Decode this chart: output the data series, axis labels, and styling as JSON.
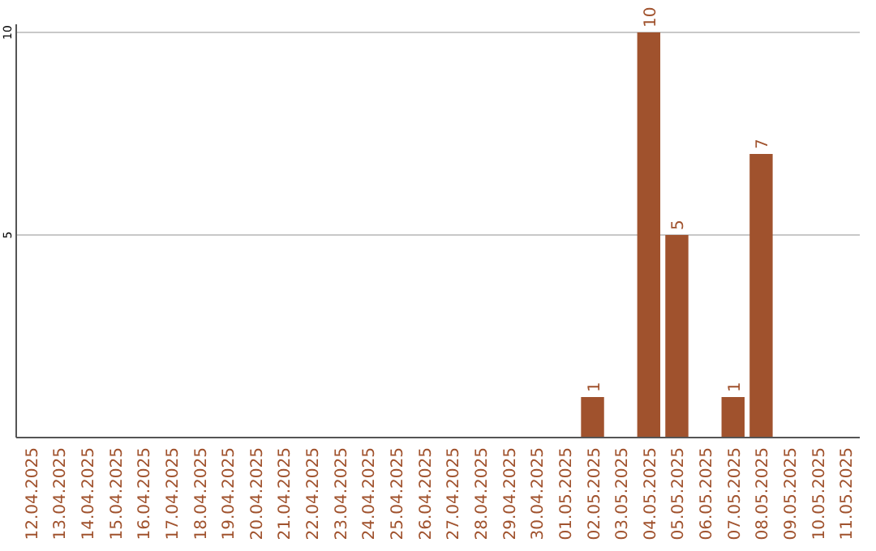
{
  "chart_data": {
    "type": "bar",
    "categories": [
      "12.04.2025",
      "13.04.2025",
      "14.04.2025",
      "15.04.2025",
      "16.04.2025",
      "17.04.2025",
      "18.04.2025",
      "19.04.2025",
      "20.04.2025",
      "21.04.2025",
      "22.04.2025",
      "23.04.2025",
      "24.04.2025",
      "25.04.2025",
      "26.04.2025",
      "27.04.2025",
      "28.04.2025",
      "29.04.2025",
      "30.04.2025",
      "01.05.2025",
      "02.05.2025",
      "03.05.2025",
      "04.05.2025",
      "05.05.2025",
      "06.05.2025",
      "07.05.2025",
      "08.05.2025",
      "09.05.2025",
      "10.05.2025",
      "11.05.2025"
    ],
    "values": [
      0,
      0,
      0,
      0,
      0,
      0,
      0,
      0,
      0,
      0,
      0,
      0,
      0,
      0,
      0,
      0,
      0,
      0,
      0,
      0,
      1,
      0,
      10,
      5,
      0,
      1,
      7,
      0,
      0,
      0
    ],
    "value_labels": [
      null,
      null,
      null,
      null,
      null,
      null,
      null,
      null,
      null,
      null,
      null,
      null,
      null,
      null,
      null,
      null,
      null,
      null,
      null,
      null,
      "1",
      null,
      "10",
      "5",
      null,
      "1",
      "7",
      null,
      null,
      null
    ],
    "color": "#a0522d",
    "ylim": [
      0,
      10
    ],
    "yticks": [
      5,
      10
    ],
    "grid": "y"
  }
}
